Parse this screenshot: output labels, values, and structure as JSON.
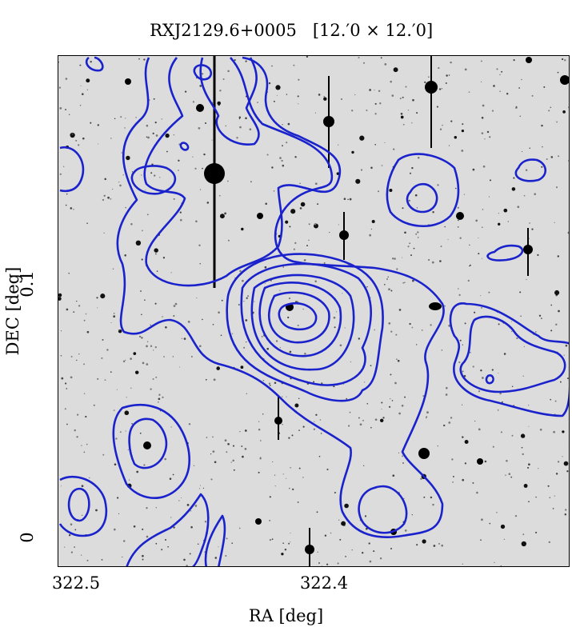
{
  "title": {
    "object": "RXJ2129.6+0005",
    "field": "[12.′0 × 12.′0]"
  },
  "axes": {
    "xlabel": "RA [deg]",
    "ylabel": "DEC [deg]",
    "xticks": [
      "322.5",
      "322.4"
    ],
    "yticks": [
      "0.1",
      "0"
    ]
  },
  "colors": {
    "contour": "#1a22cc",
    "sky": "#dcdcdc",
    "source": "#000000"
  }
}
